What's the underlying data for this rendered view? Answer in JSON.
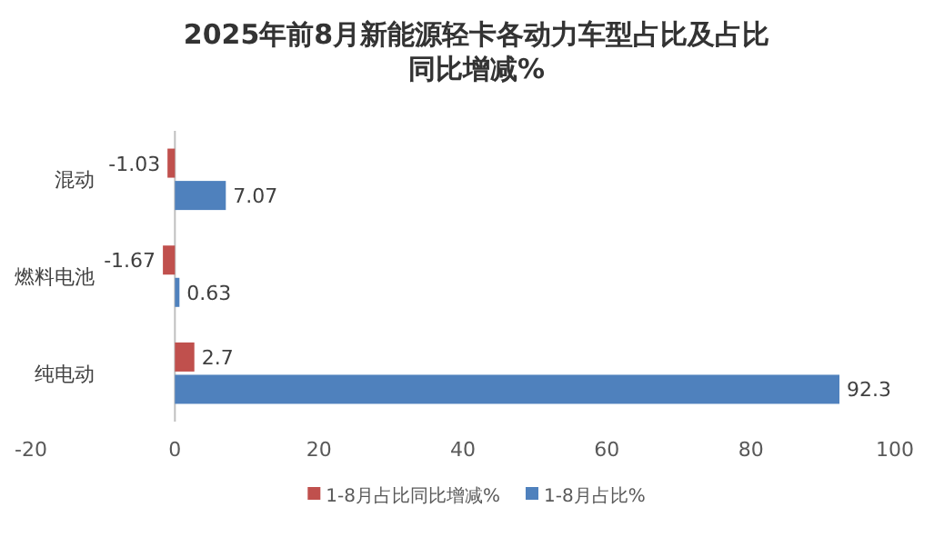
{
  "chart_data": {
    "type": "bar",
    "orientation": "horizontal",
    "title": "2025年前8月新能源轻卡各动力车型占比及占比同比增减%",
    "categories": [
      "混动",
      "燃料电池",
      "纯电动"
    ],
    "series": [
      {
        "name": "1-8月占比同比增减%",
        "color": "#c0504d",
        "values": [
          -1.03,
          -1.67,
          2.7
        ]
      },
      {
        "name": "1-8月占比%",
        "color": "#4f81bd",
        "values": [
          7.07,
          0.63,
          92.3
        ]
      }
    ],
    "xlim": [
      -20,
      100
    ],
    "xticks": [
      -20,
      0,
      20,
      40,
      60,
      80,
      100
    ],
    "data_labels": true,
    "legend": "bottom"
  }
}
